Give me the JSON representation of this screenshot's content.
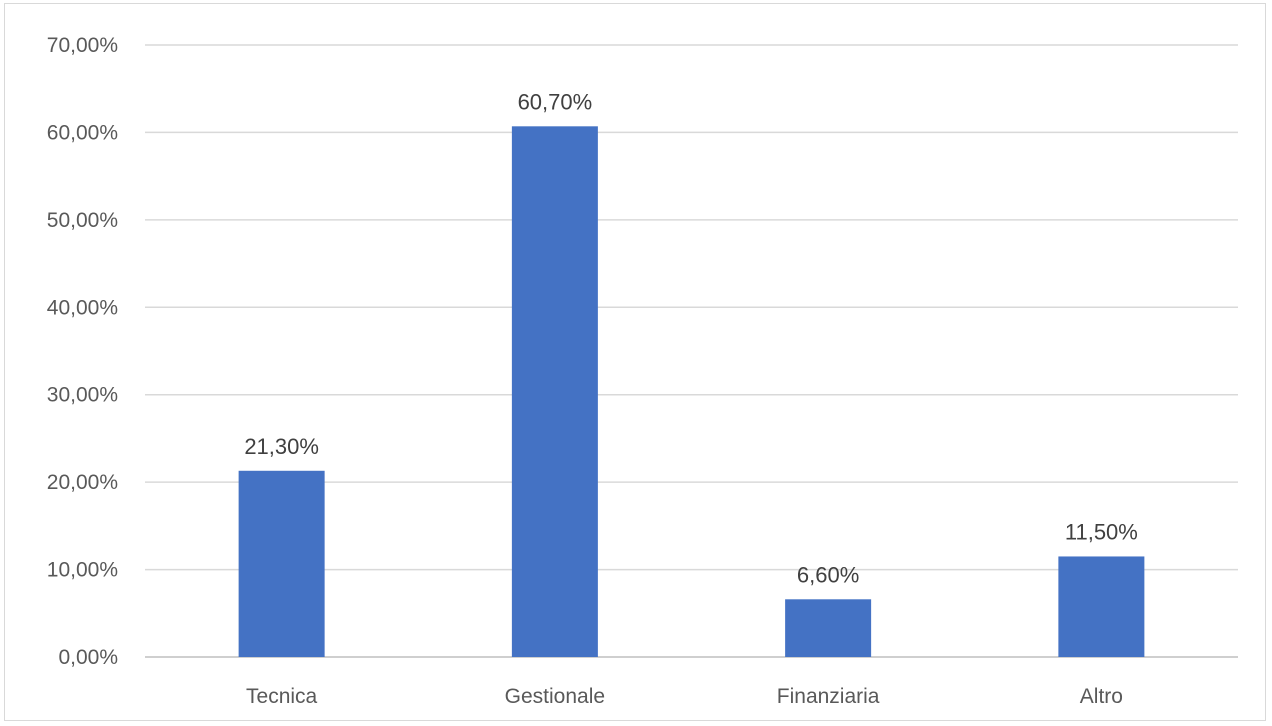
{
  "chart_data": {
    "type": "bar",
    "categories": [
      "Tecnica",
      "Gestionale",
      "Finanziaria",
      "Altro"
    ],
    "values": [
      21.3,
      60.7,
      6.6,
      11.5
    ],
    "data_labels": [
      "21,30%",
      "60,70%",
      "6,60%",
      "11,50%"
    ],
    "y_ticks": [
      0,
      10,
      20,
      30,
      40,
      50,
      60,
      70
    ],
    "y_tick_labels": [
      "0,00%",
      "10,00%",
      "20,00%",
      "30,00%",
      "40,00%",
      "50,00%",
      "60,00%",
      "70,00%"
    ],
    "ylim": [
      0,
      70
    ],
    "grid": true,
    "legend": "none",
    "bar_color": "#4472c4"
  }
}
